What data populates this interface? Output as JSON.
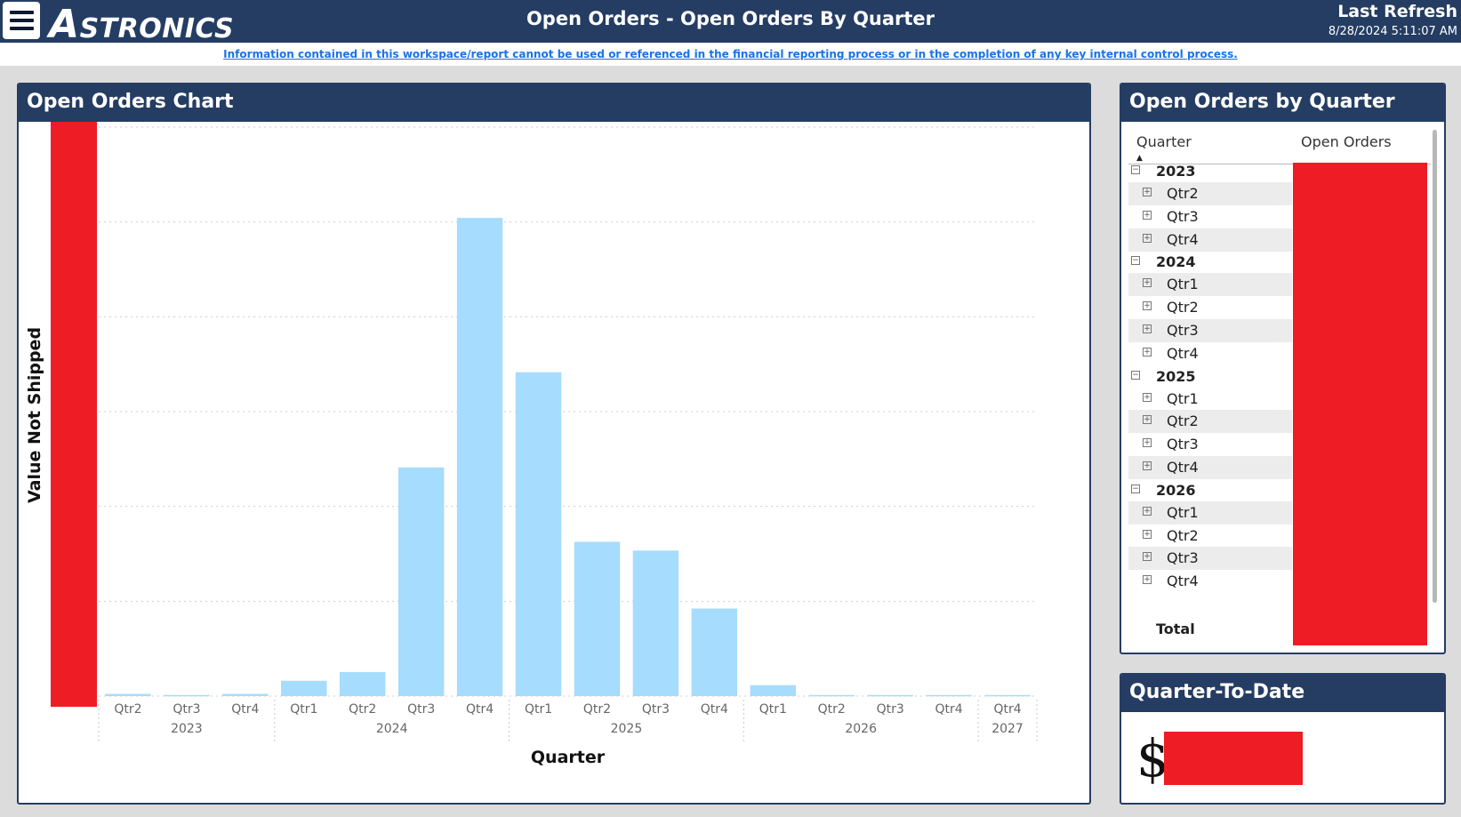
{
  "header": {
    "logo_first": "A",
    "logo_rest": "STRONICS",
    "title": "Open Orders - Open Orders By Quarter",
    "refresh_label": "Last Refresh",
    "refresh_time": "8/28/2024 5:11:07 AM",
    "disclaimer": "Information contained in this workspace/report cannot be used or referenced in the financial reporting process or in the completion of any key internal control process."
  },
  "chart_panel": {
    "title": "Open Orders Chart"
  },
  "chart_data": {
    "type": "bar",
    "title": "Open Orders Chart",
    "xlabel": "Quarter",
    "ylabel": "Value Not Shipped",
    "ylim": [
      0,
      52
    ],
    "grid": true,
    "y_tick_labels_redacted": true,
    "categories": [
      "Qtr2",
      "Qtr3",
      "Qtr4",
      "Qtr1",
      "Qtr2",
      "Qtr3",
      "Qtr4",
      "Qtr1",
      "Qtr2",
      "Qtr3",
      "Qtr4",
      "Qtr1",
      "Qtr2",
      "Qtr3",
      "Qtr4",
      "Qtr4"
    ],
    "category_years": [
      "2023",
      "2023",
      "2023",
      "2024",
      "2024",
      "2024",
      "2024",
      "2025",
      "2025",
      "2025",
      "2025",
      "2026",
      "2026",
      "2026",
      "2026",
      "2027"
    ],
    "year_groups": [
      {
        "label": "2023",
        "count": 3
      },
      {
        "label": "2024",
        "count": 4
      },
      {
        "label": "2025",
        "count": 4
      },
      {
        "label": "2026",
        "count": 4
      },
      {
        "label": "2027",
        "count": 1
      }
    ],
    "values": [
      0.2,
      0.1,
      0.2,
      1.4,
      2.2,
      20.9,
      43.7,
      29.6,
      14.1,
      13.3,
      8.0,
      1.0,
      0.1,
      0.1,
      0.1,
      0.1
    ],
    "bar_color": "#a6dcfd"
  },
  "table_panel": {
    "title": "Open Orders by Quarter",
    "col_quarter": "Quarter",
    "col_orders": "Open Orders",
    "total_label": "Total",
    "rows": [
      {
        "label": "2023",
        "year": true
      },
      {
        "label": "Qtr2",
        "year": false
      },
      {
        "label": "Qtr3",
        "year": false
      },
      {
        "label": "Qtr4",
        "year": false
      },
      {
        "label": "2024",
        "year": true
      },
      {
        "label": "Qtr1",
        "year": false
      },
      {
        "label": "Qtr2",
        "year": false
      },
      {
        "label": "Qtr3",
        "year": false
      },
      {
        "label": "Qtr4",
        "year": false
      },
      {
        "label": "2025",
        "year": true
      },
      {
        "label": "Qtr1",
        "year": false
      },
      {
        "label": "Qtr2",
        "year": false
      },
      {
        "label": "Qtr3",
        "year": false
      },
      {
        "label": "Qtr4",
        "year": false
      },
      {
        "label": "2026",
        "year": true
      },
      {
        "label": "Qtr1",
        "year": false
      },
      {
        "label": "Qtr2",
        "year": false
      },
      {
        "label": "Qtr3",
        "year": false
      },
      {
        "label": "Qtr4",
        "year": false
      }
    ]
  },
  "qtd_panel": {
    "title": "Quarter-To-Date",
    "currency": "$"
  },
  "colors": {
    "header": "#253d63",
    "redaction": "#ee1c25",
    "bar": "#a6dcfd",
    "link": "#1a73e8"
  }
}
